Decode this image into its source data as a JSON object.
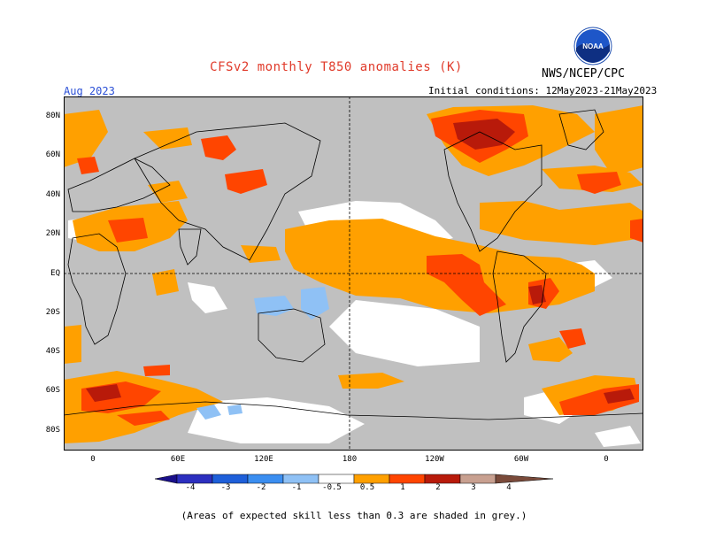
{
  "header": {
    "title": "CFSv2 monthly T850 anomalies (K)",
    "agency": "NWS/NCEP/CPC",
    "logo_text": "NOAA",
    "valid_month": "Aug 2023",
    "initial_conditions": "Initial conditions: 12May2023-21May2023"
  },
  "map": {
    "lat_labels": [
      "80N",
      "60N",
      "40N",
      "20N",
      "EQ",
      "20S",
      "40S",
      "60S",
      "80S"
    ],
    "lon_labels": [
      "0",
      "60E",
      "120E",
      "180",
      "120W",
      "60W",
      "0"
    ],
    "ocean_color": "#c0c0c0",
    "land_outline_color": "#000000"
  },
  "legend": {
    "tick_labels": [
      "-4",
      "-3",
      "-2",
      "-1",
      "-0.5",
      "0.5",
      "1",
      "2",
      "3",
      "4"
    ],
    "colors": {
      "below_-4": "#1a0f8a",
      "-4_-3": "#2c2fbf",
      "-3_-2": "#1e5fd9",
      "-2_-1": "#3b8ef0",
      "-1_-0.5": "#8fc1f5",
      "-0.5_0.5": "#ffffff",
      "0.5_1": "#ffa000",
      "1_2": "#ff4500",
      "2_3": "#b81a0a",
      "3_4": "#c8a090",
      "above_4": "#7a4a3a"
    }
  },
  "footnote": "(Areas of expected skill less than 0.3 are shaded in grey.)"
}
